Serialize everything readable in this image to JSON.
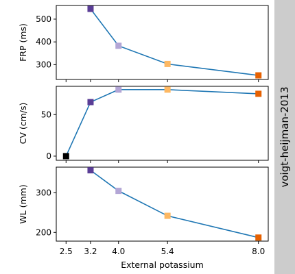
{
  "side_label": "voigt-heijman-2013",
  "side_bar_color": "#cccccc",
  "line_color": "#1f77b4",
  "chart_data": [
    {
      "type": "line",
      "ylabel": "FRP (ms)",
      "xlabel": "",
      "ylim": [
        235,
        560
      ],
      "yticks": [
        300,
        400,
        500
      ],
      "points": [
        {
          "x": 3.2,
          "y": 545,
          "color": "#5a3d96"
        },
        {
          "x": 4.0,
          "y": 383,
          "color": "#b3a6d6"
        },
        {
          "x": 5.4,
          "y": 303,
          "color": "#fdb863"
        },
        {
          "x": 8.0,
          "y": 253,
          "color": "#e66101"
        }
      ]
    },
    {
      "type": "line",
      "ylabel": "CV (cm/s)",
      "xlabel": "",
      "ylim": [
        -5,
        84
      ],
      "yticks": [
        0,
        50
      ],
      "points": [
        {
          "x": 2.5,
          "y": 0,
          "color": "#000000"
        },
        {
          "x": 3.2,
          "y": 65,
          "color": "#5a3d96"
        },
        {
          "x": 4.0,
          "y": 80,
          "color": "#b3a6d6"
        },
        {
          "x": 5.4,
          "y": 80,
          "color": "#fdb863"
        },
        {
          "x": 8.0,
          "y": 75,
          "color": "#e66101"
        }
      ]
    },
    {
      "type": "line",
      "ylabel": "WL (mm)",
      "xlabel": "External potassium",
      "ylim": [
        178,
        365
      ],
      "yticks": [
        200,
        300
      ],
      "xticks": [
        2.5,
        3.2,
        4.0,
        5.4,
        8.0
      ],
      "xtick_labels": [
        "2.5",
        "3.2",
        "4.0",
        "5.4",
        "8.0"
      ],
      "points": [
        {
          "x": 3.2,
          "y": 357,
          "color": "#5a3d96"
        },
        {
          "x": 4.0,
          "y": 305,
          "color": "#b3a6d6"
        },
        {
          "x": 5.4,
          "y": 242,
          "color": "#fdb863"
        },
        {
          "x": 8.0,
          "y": 187,
          "color": "#e66101"
        }
      ]
    }
  ]
}
